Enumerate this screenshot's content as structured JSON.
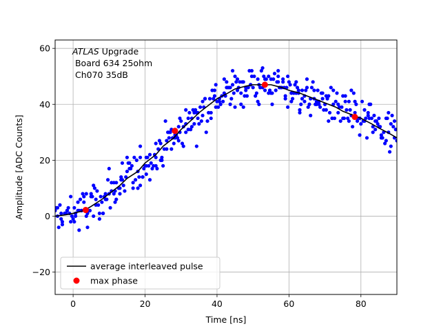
{
  "chart_data": {
    "type": "scatter",
    "title": "",
    "xlabel": "Time [ns]",
    "ylabel": "Amplitude [ADC Counts]",
    "xlim": [
      -5,
      90
    ],
    "ylim": [
      -28,
      63
    ],
    "xticks": [
      0,
      20,
      40,
      60,
      80
    ],
    "yticks": [
      -20,
      0,
      20,
      40,
      60
    ],
    "grid": true,
    "legend_position": "lower-left",
    "annotation": {
      "line1_italic": "ATLAS",
      "line1_rest": " Upgrade",
      "line2": " Board 634 25ohm",
      "line3": " Ch070 35dB"
    },
    "series": [
      {
        "name": "",
        "kind": "scatter",
        "color": "#0000ff",
        "noise": 6,
        "samples_per_ns": 4.2,
        "seed": 12345
      },
      {
        "name": "average interleaved pulse",
        "kind": "line",
        "color": "#000000",
        "x": [
          -5,
          -2,
          0,
          3,
          5,
          8,
          10,
          13,
          15,
          18,
          20,
          23,
          25,
          28,
          30,
          33,
          35,
          38,
          40,
          43,
          45,
          48,
          50,
          53,
          55,
          58,
          60,
          63,
          65,
          68,
          70,
          73,
          75,
          78,
          80,
          83,
          85,
          88,
          90
        ],
        "y": [
          0,
          0.5,
          1,
          2,
          3.5,
          6,
          8,
          11,
          13.5,
          16,
          19,
          22,
          25,
          28,
          31,
          34.5,
          37,
          40,
          42,
          44,
          45.5,
          46.5,
          47,
          47,
          47,
          46,
          45,
          44,
          43,
          41.5,
          40.5,
          39,
          37.5,
          36,
          35,
          33,
          31.5,
          29.5,
          28
        ]
      },
      {
        "name": "max phase",
        "kind": "marker",
        "color": "#ff0000",
        "x": [
          3.5,
          28.3,
          53.3,
          78.3
        ],
        "y": [
          2.2,
          30.5,
          47,
          35.5
        ]
      }
    ]
  }
}
